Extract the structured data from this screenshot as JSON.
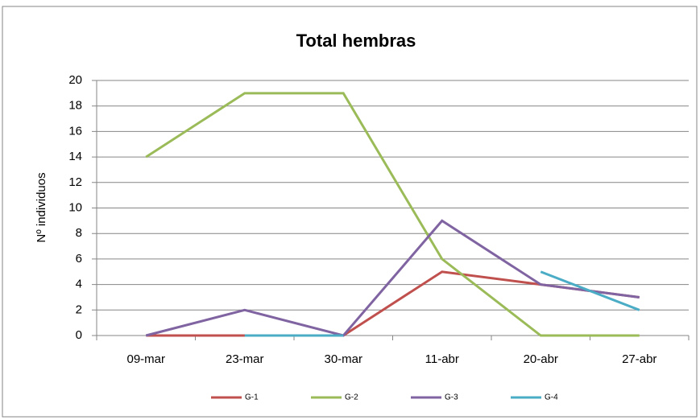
{
  "chart_data": {
    "type": "line",
    "title": "Total hembras",
    "y_label": "Nº individuos",
    "categories": [
      "09-mar",
      "23-mar",
      "30-mar",
      "11-abr",
      "20-abr",
      "27-abr"
    ],
    "series": [
      {
        "name": "G-1",
        "color": "#c0504d",
        "values": [
          0,
          0,
          0,
          5,
          4,
          3
        ]
      },
      {
        "name": "G-2",
        "color": "#9bbb59",
        "values": [
          14,
          19,
          19,
          6,
          0,
          0
        ]
      },
      {
        "name": "G-3",
        "color": "#8064a2",
        "values": [
          0,
          2,
          0,
          9,
          4,
          3
        ]
      },
      {
        "name": "G-4",
        "color": "#4bacc6",
        "values": [
          null,
          0,
          0,
          null,
          5,
          2
        ]
      }
    ],
    "ylim": [
      0,
      20
    ],
    "yticks": [
      0,
      2,
      4,
      6,
      8,
      10,
      12,
      14,
      16,
      18,
      20
    ],
    "grid": true
  }
}
